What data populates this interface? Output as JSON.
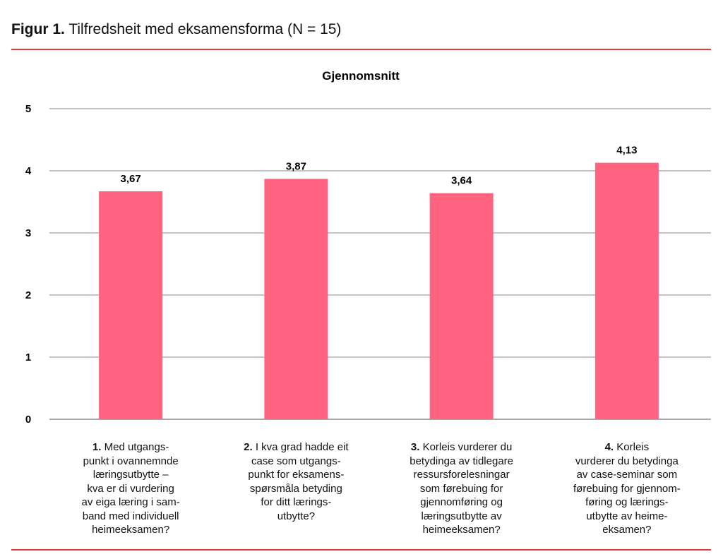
{
  "figure": {
    "label": "Figur 1.",
    "caption": "Tilfredsheit med eksamensforma (N = 15)"
  },
  "chart_data": {
    "type": "bar",
    "title": "Gjennomsnitt",
    "xlabel": "",
    "ylabel": "",
    "ylim": [
      0,
      5
    ],
    "yticks": [
      "0",
      "1",
      "2",
      "3",
      "4",
      "5"
    ],
    "grid": true,
    "bar_color": "#ff6380",
    "rule_color": "#e8393f",
    "categories": [
      {
        "num": "1.",
        "lines": [
          "Med utgangs-",
          "punkt i ovannemnde",
          "læringsutbytte –",
          "kva er di vurdering",
          "av eiga læring i sam-",
          "band med individuell",
          "heimeeksamen?"
        ]
      },
      {
        "num": "2.",
        "lines": [
          "I kva grad hadde eit",
          "case som utgangs-",
          "punkt for eksamens-",
          "spørsmåla betyding",
          "for ditt lærings-",
          "utbytte?"
        ]
      },
      {
        "num": "3.",
        "lines": [
          "Korleis vurderer du",
          "betydinga av tidlegare",
          "ressursforelesningar",
          "som førebuing for",
          "gjennomføring og",
          "læringsutbytte av",
          "heimeeksamen?"
        ]
      },
      {
        "num": "4.",
        "lines": [
          "Korleis",
          "vurderer du betydinga",
          "av case-seminar som",
          "førebuing for gjennom-",
          "føring og lærings-",
          "utbytte av heime-",
          "eksamen?"
        ]
      }
    ],
    "values": [
      3.67,
      3.87,
      3.64,
      4.13
    ],
    "data_labels": [
      "3,67",
      "3,87",
      "3,64",
      "4,13"
    ]
  }
}
